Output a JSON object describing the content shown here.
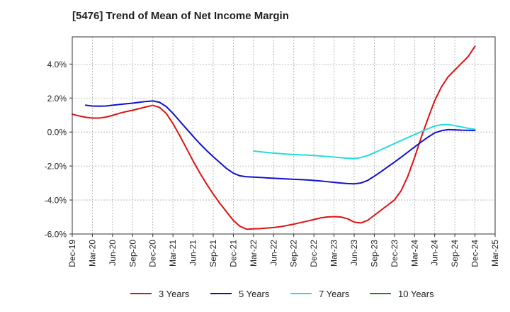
{
  "chart_data": {
    "type": "line",
    "title": "[5476]  Trend of Mean of Net Income Margin",
    "xlabel": "",
    "ylabel": "",
    "x_ticks": [
      "Dec-19",
      "Mar-20",
      "Jun-20",
      "Sep-20",
      "Dec-20",
      "Mar-21",
      "Jun-21",
      "Sep-21",
      "Dec-21",
      "Mar-22",
      "Jun-22",
      "Sep-22",
      "Dec-22",
      "Mar-23",
      "Jun-23",
      "Sep-23",
      "Dec-23",
      "Mar-24",
      "Jun-24",
      "Sep-24",
      "Dec-24",
      "Mar-25"
    ],
    "y_ticks": [
      "4.0%",
      "2.0%",
      "0.0%",
      "-2.0%",
      "-4.0%",
      "-6.0%"
    ],
    "y_tick_values": [
      4,
      2,
      0,
      -2,
      -4,
      -6
    ],
    "ylim": [
      -6,
      5.6
    ],
    "grid": true,
    "legend_position": "bottom",
    "series": [
      {
        "name": "3 Years",
        "color": "#dd1111",
        "points": [
          [
            "Dec-19",
            1.05
          ],
          [
            "Jan-20",
            0.95
          ],
          [
            "Feb-20",
            0.87
          ],
          [
            "Mar-20",
            0.82
          ],
          [
            "Apr-20",
            0.82
          ],
          [
            "May-20",
            0.88
          ],
          [
            "Jun-20",
            0.98
          ],
          [
            "Jul-20",
            1.1
          ],
          [
            "Aug-20",
            1.2
          ],
          [
            "Sep-20",
            1.28
          ],
          [
            "Oct-20",
            1.38
          ],
          [
            "Nov-20",
            1.48
          ],
          [
            "Dec-20",
            1.57
          ],
          [
            "Jan-21",
            1.45
          ],
          [
            "Feb-21",
            1.1
          ],
          [
            "Mar-21",
            0.5
          ],
          [
            "Apr-21",
            -0.2
          ],
          [
            "May-21",
            -0.95
          ],
          [
            "Jun-21",
            -1.7
          ],
          [
            "Jul-21",
            -2.4
          ],
          [
            "Aug-21",
            -3.05
          ],
          [
            "Sep-21",
            -3.65
          ],
          [
            "Oct-21",
            -4.2
          ],
          [
            "Nov-21",
            -4.7
          ],
          [
            "Dec-21",
            -5.2
          ],
          [
            "Jan-22",
            -5.55
          ],
          [
            "Feb-22",
            -5.72
          ],
          [
            "Mar-22",
            -5.7
          ],
          [
            "Apr-22",
            -5.68
          ],
          [
            "May-22",
            -5.65
          ],
          [
            "Jun-22",
            -5.62
          ],
          [
            "Jul-22",
            -5.57
          ],
          [
            "Aug-22",
            -5.5
          ],
          [
            "Sep-22",
            -5.42
          ],
          [
            "Oct-22",
            -5.33
          ],
          [
            "Nov-22",
            -5.24
          ],
          [
            "Dec-22",
            -5.15
          ],
          [
            "Jan-23",
            -5.05
          ],
          [
            "Feb-23",
            -5.0
          ],
          [
            "Mar-23",
            -4.98
          ],
          [
            "Apr-23",
            -5.0
          ],
          [
            "May-23",
            -5.1
          ],
          [
            "Jun-23",
            -5.3
          ],
          [
            "Jul-23",
            -5.35
          ],
          [
            "Aug-23",
            -5.2
          ],
          [
            "Sep-23",
            -4.9
          ],
          [
            "Oct-23",
            -4.6
          ],
          [
            "Nov-23",
            -4.3
          ],
          [
            "Dec-23",
            -4.0
          ],
          [
            "Jan-24",
            -3.45
          ],
          [
            "Feb-24",
            -2.6
          ],
          [
            "Mar-24",
            -1.5
          ],
          [
            "Apr-24",
            -0.3
          ],
          [
            "May-24",
            0.8
          ],
          [
            "Jun-24",
            1.85
          ],
          [
            "Jul-24",
            2.65
          ],
          [
            "Aug-24",
            3.25
          ],
          [
            "Sep-24",
            3.65
          ],
          [
            "Oct-24",
            4.05
          ],
          [
            "Nov-24",
            4.45
          ],
          [
            "Dec-24",
            5.05
          ]
        ]
      },
      {
        "name": "5 Years",
        "color": "#1111cc",
        "points": [
          [
            "Feb-20",
            1.58
          ],
          [
            "Mar-20",
            1.53
          ],
          [
            "Apr-20",
            1.52
          ],
          [
            "May-20",
            1.53
          ],
          [
            "Jun-20",
            1.58
          ],
          [
            "Jul-20",
            1.62
          ],
          [
            "Aug-20",
            1.66
          ],
          [
            "Sep-20",
            1.7
          ],
          [
            "Oct-20",
            1.75
          ],
          [
            "Nov-20",
            1.8
          ],
          [
            "Dec-20",
            1.83
          ],
          [
            "Jan-21",
            1.75
          ],
          [
            "Feb-21",
            1.5
          ],
          [
            "Mar-21",
            1.1
          ],
          [
            "Apr-21",
            0.65
          ],
          [
            "May-21",
            0.2
          ],
          [
            "Jun-21",
            -0.25
          ],
          [
            "Jul-21",
            -0.68
          ],
          [
            "Aug-21",
            -1.08
          ],
          [
            "Sep-21",
            -1.45
          ],
          [
            "Oct-21",
            -1.8
          ],
          [
            "Nov-21",
            -2.15
          ],
          [
            "Dec-21",
            -2.42
          ],
          [
            "Jan-22",
            -2.58
          ],
          [
            "Feb-22",
            -2.63
          ],
          [
            "Mar-22",
            -2.65
          ],
          [
            "Apr-22",
            -2.67
          ],
          [
            "May-22",
            -2.7
          ],
          [
            "Jun-22",
            -2.72
          ],
          [
            "Jul-22",
            -2.74
          ],
          [
            "Aug-22",
            -2.76
          ],
          [
            "Sep-22",
            -2.78
          ],
          [
            "Oct-22",
            -2.8
          ],
          [
            "Nov-22",
            -2.82
          ],
          [
            "Dec-22",
            -2.85
          ],
          [
            "Jan-23",
            -2.88
          ],
          [
            "Feb-23",
            -2.92
          ],
          [
            "Mar-23",
            -2.96
          ],
          [
            "Apr-23",
            -3.0
          ],
          [
            "May-23",
            -3.03
          ],
          [
            "Jun-23",
            -3.05
          ],
          [
            "Jul-23",
            -3.0
          ],
          [
            "Aug-23",
            -2.85
          ],
          [
            "Sep-23",
            -2.6
          ],
          [
            "Oct-23",
            -2.33
          ],
          [
            "Nov-23",
            -2.05
          ],
          [
            "Dec-23",
            -1.77
          ],
          [
            "Jan-24",
            -1.48
          ],
          [
            "Feb-24",
            -1.18
          ],
          [
            "Mar-24",
            -0.88
          ],
          [
            "Apr-24",
            -0.58
          ],
          [
            "May-24",
            -0.3
          ],
          [
            "Jun-24",
            -0.05
          ],
          [
            "Jul-24",
            0.08
          ],
          [
            "Aug-24",
            0.14
          ],
          [
            "Sep-24",
            0.13
          ],
          [
            "Oct-24",
            0.11
          ],
          [
            "Nov-24",
            0.1
          ],
          [
            "Dec-24",
            0.09
          ]
        ]
      },
      {
        "name": "7 Years",
        "color": "#22dddd",
        "points": [
          [
            "Mar-22",
            -1.12
          ],
          [
            "Apr-22",
            -1.16
          ],
          [
            "May-22",
            -1.2
          ],
          [
            "Jun-22",
            -1.24
          ],
          [
            "Jul-22",
            -1.27
          ],
          [
            "Aug-22",
            -1.3
          ],
          [
            "Sep-22",
            -1.32
          ],
          [
            "Oct-22",
            -1.34
          ],
          [
            "Nov-22",
            -1.36
          ],
          [
            "Dec-22",
            -1.38
          ],
          [
            "Jan-23",
            -1.41
          ],
          [
            "Feb-23",
            -1.44
          ],
          [
            "Mar-23",
            -1.47
          ],
          [
            "Apr-23",
            -1.51
          ],
          [
            "May-23",
            -1.54
          ],
          [
            "Jun-23",
            -1.56
          ],
          [
            "Jul-23",
            -1.5
          ],
          [
            "Aug-23",
            -1.38
          ],
          [
            "Sep-23",
            -1.22
          ],
          [
            "Oct-23",
            -1.04
          ],
          [
            "Nov-23",
            -0.86
          ],
          [
            "Dec-23",
            -0.68
          ],
          [
            "Jan-24",
            -0.5
          ],
          [
            "Feb-24",
            -0.32
          ],
          [
            "Mar-24",
            -0.15
          ],
          [
            "Apr-24",
            0.02
          ],
          [
            "May-24",
            0.2
          ],
          [
            "Jun-24",
            0.35
          ],
          [
            "Jul-24",
            0.43
          ],
          [
            "Aug-24",
            0.44
          ],
          [
            "Sep-24",
            0.38
          ],
          [
            "Oct-24",
            0.3
          ],
          [
            "Nov-24",
            0.22
          ],
          [
            "Dec-24",
            0.16
          ]
        ]
      },
      {
        "name": "10 Years",
        "color": "#228822",
        "points": []
      }
    ]
  }
}
